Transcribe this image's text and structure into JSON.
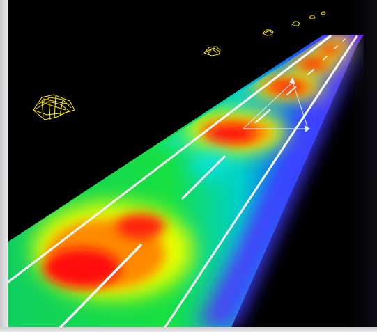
{
  "scene": {
    "background_color": "#000000",
    "heatmap_colors": [
      "#ff0000",
      "#ff8800",
      "#ffff00",
      "#00ff00",
      "#00ffff",
      "#0000ff",
      "#8800ff"
    ],
    "lane_line_color": "#ffffff",
    "vehicle_wireframe_color": "#ffff00",
    "vehicle_count": 7,
    "hotspot_count": 7,
    "icons": {
      "vehicle": "wireframe-vehicle-icon",
      "hotspot": "heat-blob-icon",
      "vector_arrow": "arrow-icon"
    }
  }
}
